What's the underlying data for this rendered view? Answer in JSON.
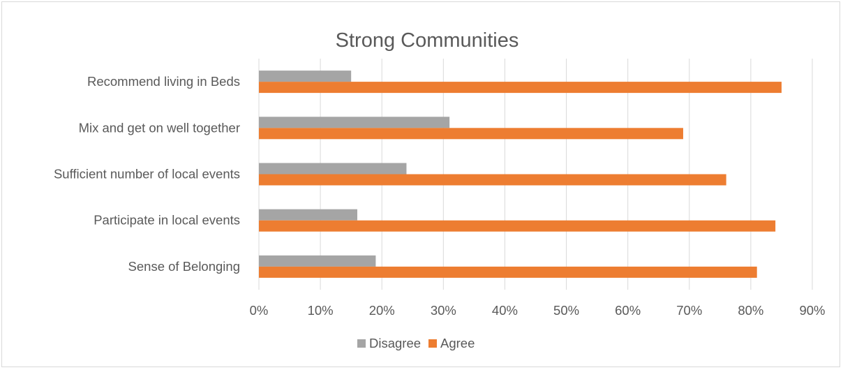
{
  "chart_data": {
    "type": "bar",
    "orientation": "horizontal",
    "title": "Strong Communities",
    "categories": [
      "Recommend living in Beds",
      "Mix and get on well together",
      "Sufficient number of local events",
      "Participate in  local events",
      "Sense of Belonging"
    ],
    "series": [
      {
        "name": "Disagree",
        "color": "#a5a5a5",
        "values": [
          15,
          31,
          24,
          16,
          19
        ]
      },
      {
        "name": "Agree",
        "color": "#ed7d31",
        "values": [
          85,
          69,
          76,
          84,
          81
        ]
      }
    ],
    "xlim": [
      0,
      90
    ],
    "ticks": [
      0,
      10,
      20,
      30,
      40,
      50,
      60,
      70,
      80,
      90
    ],
    "tick_labels": [
      "0%",
      "10%",
      "20%",
      "30%",
      "40%",
      "50%",
      "60%",
      "70%",
      "80%",
      "90%"
    ],
    "grid": true,
    "gridline_color": "#d9d9d9",
    "legend_position": "bottom"
  }
}
